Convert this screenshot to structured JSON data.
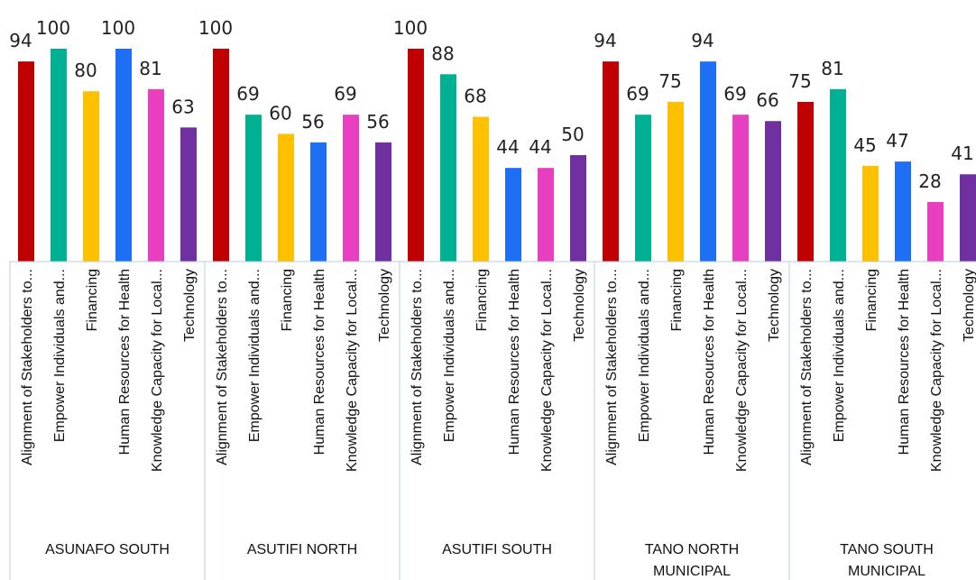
{
  "chart_data": {
    "type": "bar",
    "category_labels": [
      "Alignment of Stakeholders to...",
      "Empower Individuals and...",
      "Financing",
      "Human Resources for Health",
      "Knowledge Capacity for Local...",
      "Technology"
    ],
    "category_colors": [
      "#c00000",
      "#00b093",
      "#ffc000",
      "#1f6ff5",
      "#e83ec0",
      "#7030a0"
    ],
    "groups": [
      {
        "name": "ASUNAFO SOUTH",
        "name_lines": [
          "ASUNAFO SOUTH"
        ],
        "values": [
          94,
          100,
          80,
          100,
          81,
          63
        ]
      },
      {
        "name": "ASUTIFI NORTH",
        "name_lines": [
          "ASUTIFI NORTH"
        ],
        "values": [
          100,
          69,
          60,
          56,
          69,
          56
        ]
      },
      {
        "name": "ASUTIFI SOUTH",
        "name_lines": [
          "ASUTIFI SOUTH"
        ],
        "values": [
          100,
          88,
          68,
          44,
          44,
          50
        ]
      },
      {
        "name": "TANO NORTH MUNICIPAL",
        "name_lines": [
          "TANO NORTH",
          "MUNICIPAL"
        ],
        "values": [
          94,
          69,
          75,
          94,
          69,
          66
        ]
      },
      {
        "name": "TANO SOUTH MUNICIPAL",
        "name_lines": [
          "TANO SOUTH",
          "MUNICIPAL"
        ],
        "values": [
          75,
          81,
          45,
          47,
          28,
          41
        ]
      }
    ],
    "ylim": [
      0,
      100
    ],
    "grid": false,
    "legend": "none"
  }
}
